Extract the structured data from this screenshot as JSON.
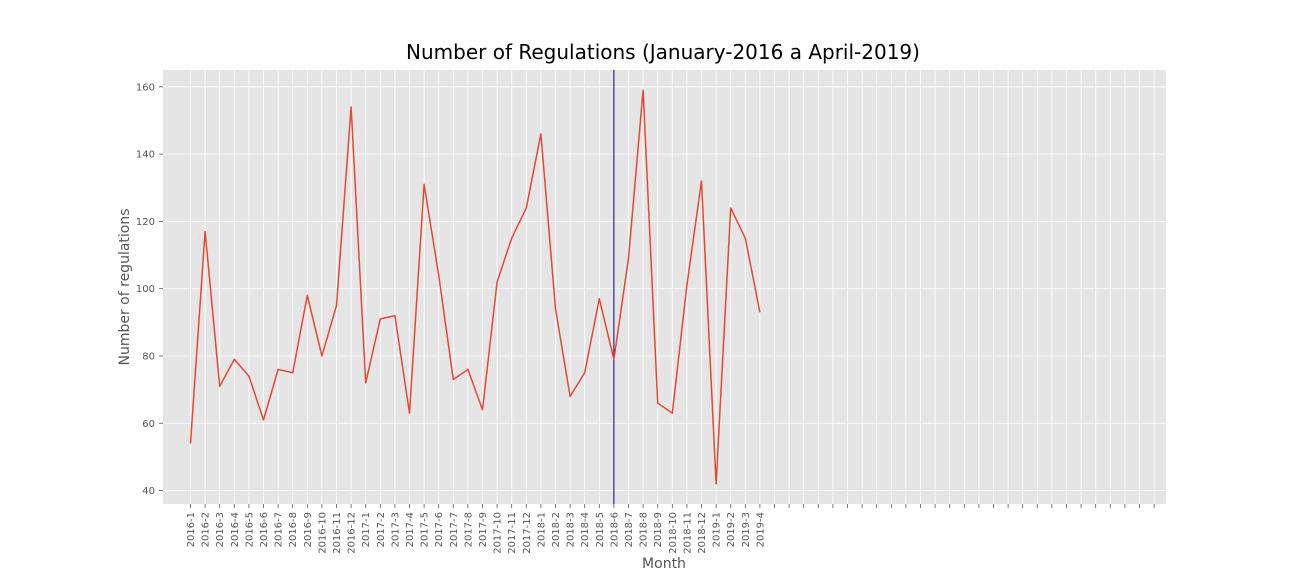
{
  "chart_data": {
    "type": "line",
    "title": "Number of Regulations (January-2016 a April-2019)",
    "xlabel": "Month",
    "ylabel": "Number of regulations",
    "ylim": [
      36,
      165
    ],
    "yticks": [
      40,
      60,
      80,
      100,
      120,
      140,
      160
    ],
    "grid": true,
    "style": "ggplot",
    "empty_extra_xticks": 28,
    "categories": [
      "2016-1",
      "2016-2",
      "2016-3",
      "2016-4",
      "2016-5",
      "2016-6",
      "2016-7",
      "2016-8",
      "2016-9",
      "2016-10",
      "2016-11",
      "2016-12",
      "2017-1",
      "2017-2",
      "2017-3",
      "2017-4",
      "2017-5",
      "2017-6",
      "2017-7",
      "2017-8",
      "2017-9",
      "2017-10",
      "2017-11",
      "2017-12",
      "2018-1",
      "2018-2",
      "2018-3",
      "2018-4",
      "2018-5",
      "2018-6",
      "2018-7",
      "2018-8",
      "2018-9",
      "2018-10",
      "2018-11",
      "2018-12",
      "2019-1",
      "2019-2",
      "2019-3",
      "2019-4"
    ],
    "series": [
      {
        "color": "#e24a33",
        "values": [
          54,
          117,
          71,
          79,
          74,
          61,
          76,
          75,
          98,
          80,
          95,
          154,
          72,
          91,
          92,
          63,
          131,
          104,
          73,
          76,
          64,
          102,
          115,
          124,
          146,
          94,
          68,
          75,
          97,
          79,
          109,
          159,
          66,
          63,
          101,
          132,
          42,
          124,
          115,
          93
        ]
      }
    ],
    "vertical_line": {
      "x": "2018-6",
      "color": "#000080"
    },
    "colors": {
      "plot_background": "#e5e5e5",
      "grid": "#ffffff",
      "tick_text": "#555555"
    }
  }
}
